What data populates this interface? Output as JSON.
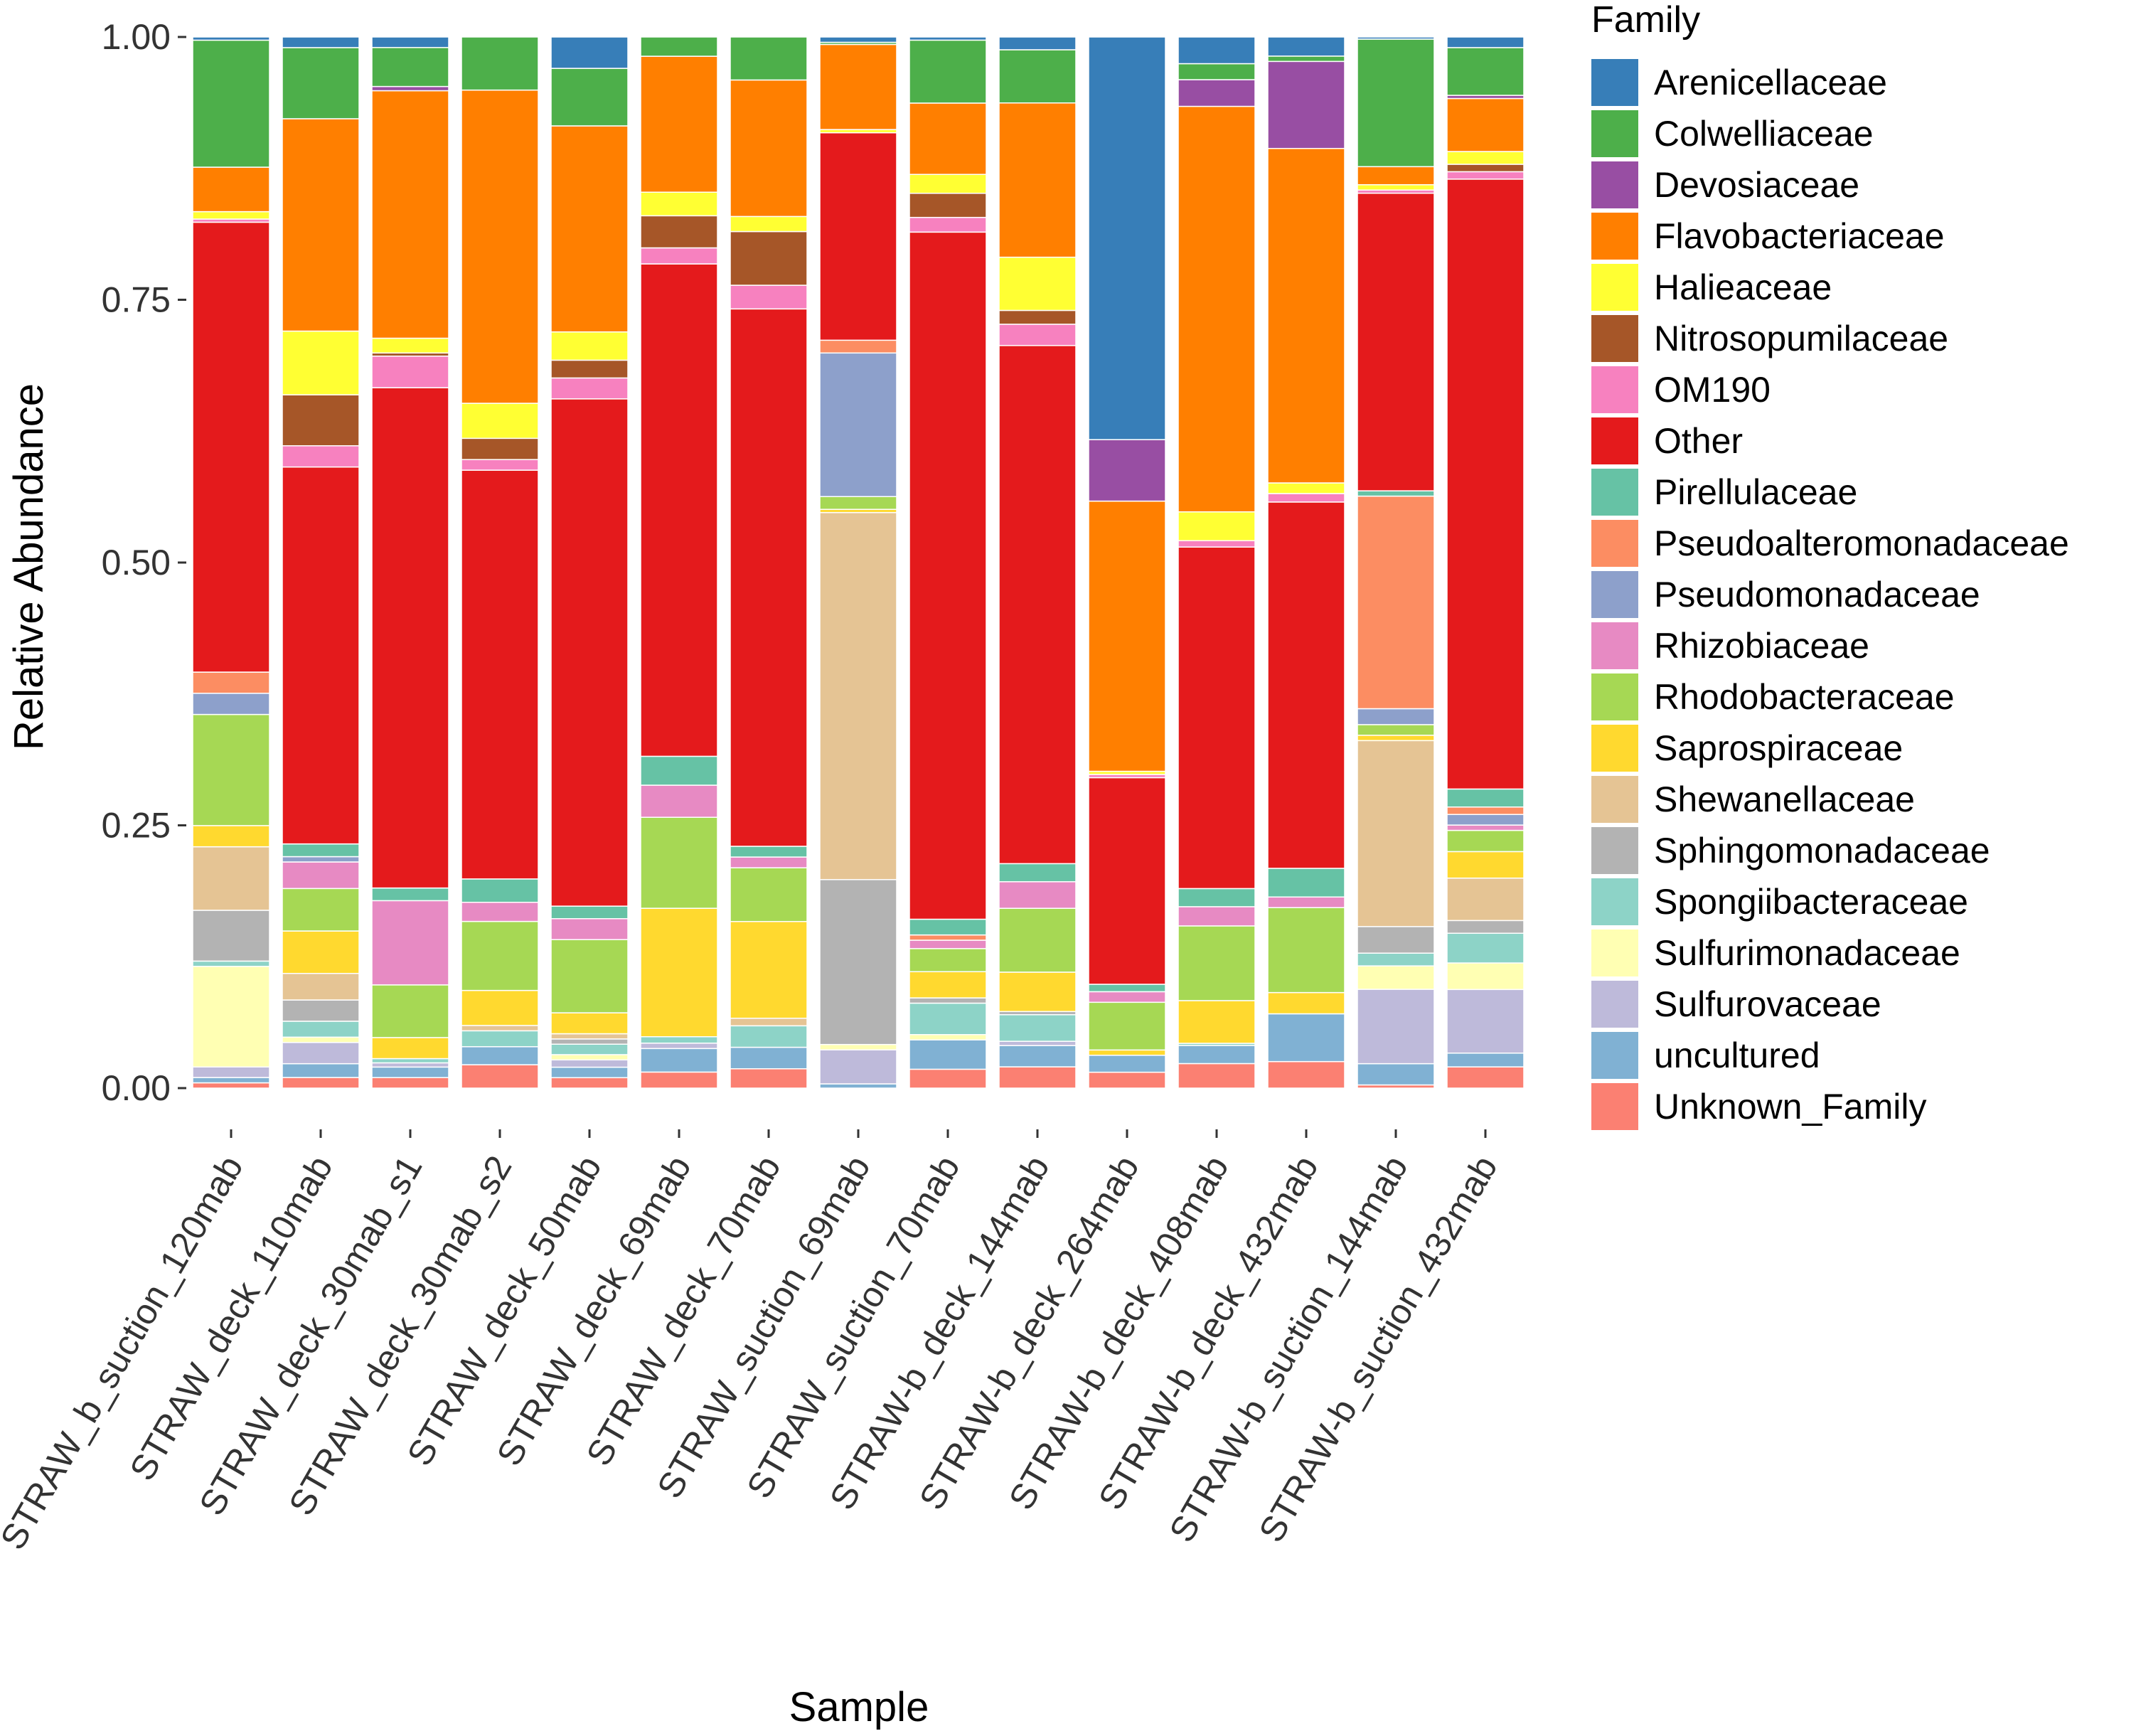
{
  "chart_data": {
    "type": "stacked-bar",
    "xlabel": "Sample",
    "ylabel": "Relative Abundance",
    "ylim": [
      0,
      1
    ],
    "yticks": [
      "0.00",
      "0.25",
      "0.50",
      "0.75",
      "1.00"
    ],
    "ytick_values": [
      0,
      0.25,
      0.5,
      0.75,
      1
    ],
    "legend_title": "Family",
    "legend_position": "right",
    "categories": [
      "STRAW_b_suction_120mab",
      "STRAW_deck_110mab",
      "STRAW_deck_30mab_s1",
      "STRAW_deck_30mab_s2",
      "STRAW_deck_50mab",
      "STRAW_deck_69mab",
      "STRAW_deck_70mab",
      "STRAW_suction_69mab",
      "STRAW_suction_70mab",
      "STRAW-b_deck_144mab",
      "STRAW-b_deck_264mab",
      "STRAW-b_deck_408mab",
      "STRAW-b_deck_432mab",
      "STRAW-b_suction_144mab",
      "STRAW-b_suction_432mab"
    ],
    "stack_order_bottom_to_top": [
      "Unknown_Family",
      "uncultured",
      "Sulfurovaceae",
      "Sulfurimonadaceae",
      "Spongiibacteraceae",
      "Sphingomonadaceae",
      "Shewanellaceae",
      "Saprospiraceae",
      "Rhodobacteraceae",
      "Rhizobiaceae",
      "Pseudomonadaceae",
      "Pseudoalteromonadaceae",
      "Pirellulaceae",
      "Other",
      "OM190",
      "Nitrosopumilaceae",
      "Halieaceae",
      "Flavobacteriaceae",
      "Devosiaceae",
      "Colwelliaceae",
      "Arenicellaceae"
    ],
    "series": [
      {
        "name": "Arenicellaceae",
        "color": "#377EB8",
        "values": [
          0.003,
          0.01,
          0.01,
          0.0,
          0.03,
          0.0,
          0.0,
          0.005,
          0.003,
          0.012,
          0.38,
          0.025,
          0.018,
          0.002,
          0.01
        ]
      },
      {
        "name": "Colwelliaceae",
        "color": "#4DAF4A",
        "values": [
          0.12,
          0.067,
          0.037,
          0.05,
          0.055,
          0.018,
          0.04,
          0.002,
          0.06,
          0.05,
          0.0,
          0.015,
          0.005,
          0.12,
          0.045
        ]
      },
      {
        "name": "Devosiaceae",
        "color": "#984EA3",
        "values": [
          0.0,
          0.0,
          0.004,
          0.0,
          0.0,
          0.0,
          0.0,
          0.0,
          0.0,
          0.0,
          0.058,
          0.025,
          0.082,
          0.0,
          0.003
        ]
      },
      {
        "name": "Flavobacteriaceae",
        "color": "#FF7F00",
        "values": [
          0.042,
          0.2,
          0.235,
          0.295,
          0.197,
          0.127,
          0.127,
          0.08,
          0.068,
          0.145,
          0.255,
          0.38,
          0.315,
          0.017,
          0.05
        ]
      },
      {
        "name": "Halieaceae",
        "color": "#FFFF33",
        "values": [
          0.007,
          0.06,
          0.014,
          0.033,
          0.027,
          0.022,
          0.014,
          0.003,
          0.018,
          0.05,
          0.003,
          0.027,
          0.01,
          0.005,
          0.012
        ]
      },
      {
        "name": "Nitrosopumilaceae",
        "color": "#A65628",
        "values": [
          0.0,
          0.048,
          0.003,
          0.02,
          0.017,
          0.03,
          0.05,
          0.0,
          0.023,
          0.013,
          0.0,
          0.0,
          0.0,
          0.0,
          0.007
        ]
      },
      {
        "name": "OM190",
        "color": "#F781BF",
        "values": [
          0.003,
          0.02,
          0.03,
          0.01,
          0.02,
          0.015,
          0.022,
          0.0,
          0.014,
          0.02,
          0.003,
          0.006,
          0.008,
          0.003,
          0.007
        ]
      },
      {
        "name": "Other",
        "color": "#E41A1C",
        "values": [
          0.425,
          0.355,
          0.475,
          0.385,
          0.485,
          0.46,
          0.5,
          0.195,
          0.655,
          0.487,
          0.195,
          0.32,
          0.345,
          0.28,
          0.575
        ]
      },
      {
        "name": "Pirellulaceae",
        "color": "#66C2A5",
        "values": [
          0.0,
          0.012,
          0.012,
          0.022,
          0.012,
          0.027,
          0.01,
          0.0,
          0.015,
          0.017,
          0.007,
          0.017,
          0.027,
          0.005,
          0.017
        ]
      },
      {
        "name": "Pseudoalteromonadaceae",
        "color": "#FC8D62",
        "values": [
          0.02,
          0.0,
          0.0,
          0.0,
          0.0,
          0.0,
          0.0,
          0.012,
          0.005,
          0.0,
          0.0,
          0.0,
          0.0,
          0.2,
          0.007
        ]
      },
      {
        "name": "Pseudomonadaceae",
        "color": "#8DA0CB",
        "values": [
          0.02,
          0.005,
          0.0,
          0.0,
          0.0,
          0.0,
          0.0,
          0.135,
          0.0,
          0.0,
          0.0,
          0.0,
          0.0,
          0.015,
          0.01
        ]
      },
      {
        "name": "Rhizobiaceae",
        "color": "#E78AC3",
        "values": [
          0.0,
          0.025,
          0.08,
          0.018,
          0.02,
          0.03,
          0.01,
          0.0,
          0.008,
          0.025,
          0.01,
          0.018,
          0.01,
          0.0,
          0.005
        ]
      },
      {
        "name": "Rhodobacteraceae",
        "color": "#A6D854",
        "values": [
          0.105,
          0.04,
          0.05,
          0.065,
          0.07,
          0.085,
          0.05,
          0.012,
          0.022,
          0.06,
          0.045,
          0.07,
          0.08,
          0.01,
          0.02
        ]
      },
      {
        "name": "Saprospiraceae",
        "color": "#FFD92F",
        "values": [
          0.02,
          0.04,
          0.02,
          0.033,
          0.02,
          0.12,
          0.09,
          0.003,
          0.025,
          0.037,
          0.005,
          0.04,
          0.02,
          0.005,
          0.025
        ]
      },
      {
        "name": "Shewanellaceae",
        "color": "#E5C494",
        "values": [
          0.06,
          0.025,
          0.0,
          0.005,
          0.005,
          0.0,
          0.007,
          0.345,
          0.0,
          0.0,
          0.0,
          0.0,
          0.0,
          0.175,
          0.04
        ]
      },
      {
        "name": "Sphingomonadaceae",
        "color": "#B3B3B3",
        "values": [
          0.048,
          0.02,
          0.0,
          0.0,
          0.005,
          0.0,
          0.0,
          0.155,
          0.005,
          0.003,
          0.0,
          0.0,
          0.0,
          0.025,
          0.012
        ]
      },
      {
        "name": "Spongiibacteraceae",
        "color": "#8DD3C7",
        "values": [
          0.005,
          0.015,
          0.004,
          0.015,
          0.01,
          0.006,
          0.02,
          0.0,
          0.03,
          0.025,
          0.0,
          0.002,
          0.0,
          0.012,
          0.028
        ]
      },
      {
        "name": "Sulfurimonadaceae",
        "color": "#FFFFB3",
        "values": [
          0.095,
          0.005,
          0.0,
          0.0,
          0.005,
          0.0,
          0.0,
          0.005,
          0.005,
          0.0,
          0.0,
          0.0,
          0.0,
          0.022,
          0.025
        ]
      },
      {
        "name": "Sulfurovaceae",
        "color": "#BEBADA",
        "values": [
          0.01,
          0.02,
          0.004,
          0.0,
          0.007,
          0.005,
          0.0,
          0.032,
          0.0,
          0.004,
          0.0,
          0.0,
          0.0,
          0.07,
          0.06
        ]
      },
      {
        "name": "uncultured",
        "color": "#80B1D3",
        "values": [
          0.005,
          0.013,
          0.01,
          0.017,
          0.01,
          0.022,
          0.02,
          0.004,
          0.028,
          0.02,
          0.016,
          0.017,
          0.045,
          0.02,
          0.013
        ]
      },
      {
        "name": "Unknown_Family",
        "color": "#FB8072",
        "values": [
          0.005,
          0.01,
          0.01,
          0.022,
          0.01,
          0.015,
          0.018,
          0.0,
          0.018,
          0.02,
          0.015,
          0.023,
          0.025,
          0.003,
          0.02
        ]
      }
    ]
  }
}
